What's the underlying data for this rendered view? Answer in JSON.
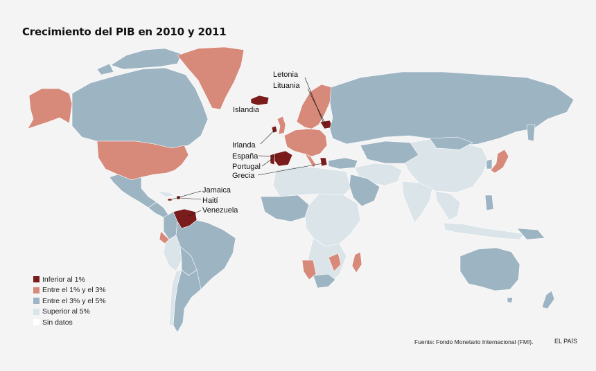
{
  "title": "Crecimiento del PIB en 2010 y 2011",
  "colors": {
    "background": "#f4f4f4",
    "inferior_1": "#7a1c1c",
    "entre_1_3": "#d7897a",
    "entre_3_5": "#9db4c3",
    "superior_5": "#dbe4e9",
    "sin_datos": "#ffffff",
    "borders": "#ffffff"
  },
  "legend": [
    {
      "label": "Inferior al 1%",
      "color": "#7a1c1c"
    },
    {
      "label": "Entre el 1% y el 3%",
      "color": "#d7897a"
    },
    {
      "label": "Entre el  3% y el 5%",
      "color": "#9db4c3"
    },
    {
      "label": "Superior al 5%",
      "color": "#dbe4e9"
    },
    {
      "label": "Sin datos",
      "color": "#ffffff"
    }
  ],
  "labels": {
    "letonia": "Letonia",
    "lituania": "Lituania",
    "islandia": "Islandia",
    "irlanda": "Irlanda",
    "espana": "España",
    "portugal": "Portugal",
    "grecia": "Grecia",
    "jamaica": "Jamaica",
    "haiti": "Haití",
    "venezuela": "Venezuela"
  },
  "source": "Fuente: Fondo Monetario Internacional (FMI).",
  "brand": "EL PAÍS"
}
